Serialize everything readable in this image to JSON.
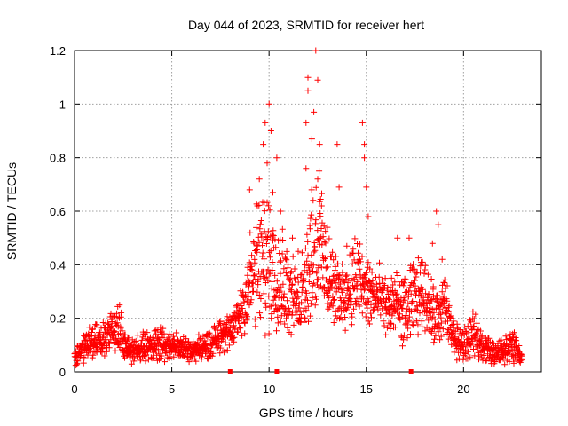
{
  "chart_data": {
    "type": "scatter",
    "title": "Day 044 of 2023, SRMTID for receiver hert",
    "xlabel": "GPS time / hours",
    "ylabel": "SRMTID / TECUs",
    "xlim": [
      0,
      24
    ],
    "ylim": [
      0,
      1.2
    ],
    "x_ticks": [
      0,
      5,
      10,
      15,
      20
    ],
    "x_tick_labels": [
      "0",
      "5",
      "10",
      "15",
      "20"
    ],
    "y_ticks": [
      0,
      0.2,
      0.4,
      0.6,
      0.8,
      1.0,
      1.2
    ],
    "y_tick_labels": [
      "0",
      "0.2",
      "0.4",
      "0.6",
      "0.8",
      "1",
      "1.2"
    ],
    "grid": true,
    "marker": "plus",
    "color": "#ff0000",
    "baseline_markers_x": [
      8.0,
      10.4,
      17.3
    ],
    "series": [
      {
        "name": "SRMTID",
        "envelope": {
          "x": [
            0.0,
            0.5,
            1.0,
            1.5,
            2.0,
            2.3,
            2.5,
            3.0,
            3.5,
            4.0,
            4.5,
            5.0,
            5.5,
            6.0,
            6.5,
            7.0,
            7.5,
            8.0,
            8.5,
            9.0,
            9.5,
            10.0,
            10.5,
            11.0,
            11.5,
            12.0,
            12.5,
            13.0,
            13.5,
            14.0,
            14.5,
            15.0,
            15.5,
            16.0,
            16.5,
            17.0,
            17.5,
            18.0,
            18.5,
            19.0,
            19.5,
            20.0,
            20.5,
            21.0,
            21.5,
            22.0,
            22.5,
            23.0
          ],
          "center": [
            0.06,
            0.09,
            0.11,
            0.12,
            0.15,
            0.2,
            0.1,
            0.08,
            0.09,
            0.1,
            0.11,
            0.1,
            0.09,
            0.08,
            0.09,
            0.1,
            0.15,
            0.14,
            0.22,
            0.33,
            0.4,
            0.42,
            0.38,
            0.3,
            0.25,
            0.4,
            0.5,
            0.35,
            0.3,
            0.3,
            0.35,
            0.3,
            0.28,
            0.25,
            0.25,
            0.22,
            0.28,
            0.3,
            0.2,
            0.25,
            0.12,
            0.1,
            0.14,
            0.1,
            0.07,
            0.08,
            0.1,
            0.05
          ],
          "spread": [
            0.03,
            0.04,
            0.05,
            0.05,
            0.06,
            0.08,
            0.04,
            0.04,
            0.04,
            0.05,
            0.05,
            0.04,
            0.04,
            0.03,
            0.04,
            0.04,
            0.06,
            0.05,
            0.08,
            0.15,
            0.2,
            0.22,
            0.18,
            0.12,
            0.1,
            0.18,
            0.25,
            0.12,
            0.1,
            0.1,
            0.15,
            0.1,
            0.1,
            0.08,
            0.1,
            0.1,
            0.12,
            0.1,
            0.08,
            0.1,
            0.06,
            0.05,
            0.06,
            0.05,
            0.03,
            0.04,
            0.05,
            0.02
          ]
        },
        "outliers": [
          {
            "x": 9.0,
            "y": 0.68
          },
          {
            "x": 9.4,
            "y": 0.62
          },
          {
            "x": 9.5,
            "y": 0.72
          },
          {
            "x": 9.7,
            "y": 0.85
          },
          {
            "x": 9.8,
            "y": 0.93
          },
          {
            "x": 9.9,
            "y": 0.78
          },
          {
            "x": 10.0,
            "y": 1.0
          },
          {
            "x": 10.1,
            "y": 0.9
          },
          {
            "x": 10.2,
            "y": 0.67
          },
          {
            "x": 10.4,
            "y": 0.8
          },
          {
            "x": 10.6,
            "y": 0.6
          },
          {
            "x": 11.2,
            "y": 0.5
          },
          {
            "x": 11.5,
            "y": 0.45
          },
          {
            "x": 11.9,
            "y": 0.76
          },
          {
            "x": 11.9,
            "y": 0.93
          },
          {
            "x": 12.0,
            "y": 1.1
          },
          {
            "x": 12.0,
            "y": 1.05
          },
          {
            "x": 12.2,
            "y": 0.87
          },
          {
            "x": 12.3,
            "y": 0.97
          },
          {
            "x": 12.4,
            "y": 1.2
          },
          {
            "x": 12.5,
            "y": 1.09
          },
          {
            "x": 12.5,
            "y": 0.72
          },
          {
            "x": 12.6,
            "y": 0.85
          },
          {
            "x": 12.7,
            "y": 0.62
          },
          {
            "x": 13.0,
            "y": 0.54
          },
          {
            "x": 13.5,
            "y": 0.85
          },
          {
            "x": 13.6,
            "y": 0.69
          },
          {
            "x": 14.0,
            "y": 0.47
          },
          {
            "x": 14.8,
            "y": 0.93
          },
          {
            "x": 14.9,
            "y": 0.85
          },
          {
            "x": 14.9,
            "y": 0.8
          },
          {
            "x": 15.0,
            "y": 0.69
          },
          {
            "x": 15.1,
            "y": 0.58
          },
          {
            "x": 16.6,
            "y": 0.5
          },
          {
            "x": 17.2,
            "y": 0.5
          },
          {
            "x": 18.4,
            "y": 0.48
          },
          {
            "x": 18.6,
            "y": 0.6
          },
          {
            "x": 18.7,
            "y": 0.55
          },
          {
            "x": 18.9,
            "y": 0.42
          }
        ]
      }
    ]
  }
}
